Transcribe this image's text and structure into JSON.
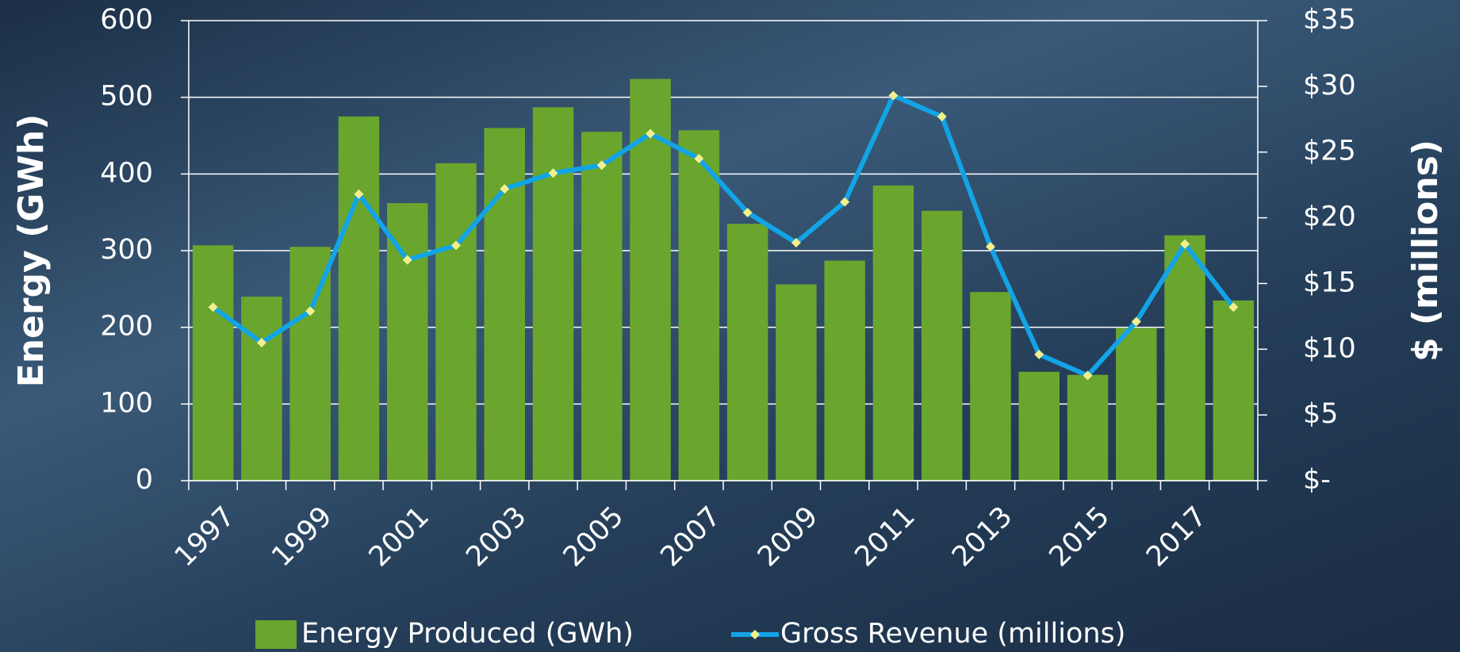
{
  "chart_data": {
    "type": "bar-line",
    "categories": [
      "1997",
      null,
      "1999",
      null,
      "2001",
      null,
      "2003",
      null,
      "2005",
      null,
      "2007",
      null,
      "2009",
      null,
      "2011",
      null,
      "2013",
      null,
      "2015",
      null,
      "2017",
      null
    ],
    "series": [
      {
        "name": "Energy Produced (GWh)",
        "type": "bar",
        "color": "#6aa62e",
        "values": [
          307,
          240,
          305,
          475,
          362,
          414,
          460,
          487,
          455,
          524,
          457,
          335,
          256,
          287,
          385,
          352,
          246,
          142,
          138,
          199,
          320,
          235
        ]
      },
      {
        "name": "Gross Revenue (millions)",
        "type": "line",
        "axis": "y2",
        "color": "#12a4e6",
        "marker_color": "#f3f08c",
        "values": [
          13.2,
          10.5,
          12.9,
          21.8,
          16.8,
          17.9,
          22.2,
          23.4,
          24.0,
          26.4,
          24.5,
          20.4,
          18.1,
          21.2,
          29.3,
          27.7,
          17.8,
          9.6,
          8.0,
          12.1,
          18.0,
          13.2
        ]
      }
    ],
    "ylabel": "Energy (GWh)",
    "y2label": "$ (millions)",
    "ylim": [
      0,
      600
    ],
    "yticks": [
      0,
      100,
      200,
      300,
      400,
      500,
      600
    ],
    "y2lim": [
      0,
      35
    ],
    "y2ticks": [
      {
        "value": 0,
        "label": "$-"
      },
      {
        "value": 5,
        "label": "$5"
      },
      {
        "value": 10,
        "label": "$10"
      },
      {
        "value": 15,
        "label": "$15"
      },
      {
        "value": 20,
        "label": "$20"
      },
      {
        "value": 25,
        "label": "$25"
      },
      {
        "value": 30,
        "label": "$30"
      },
      {
        "value": 35,
        "label": "$35"
      }
    ],
    "grid": true,
    "legend": "bottom"
  }
}
